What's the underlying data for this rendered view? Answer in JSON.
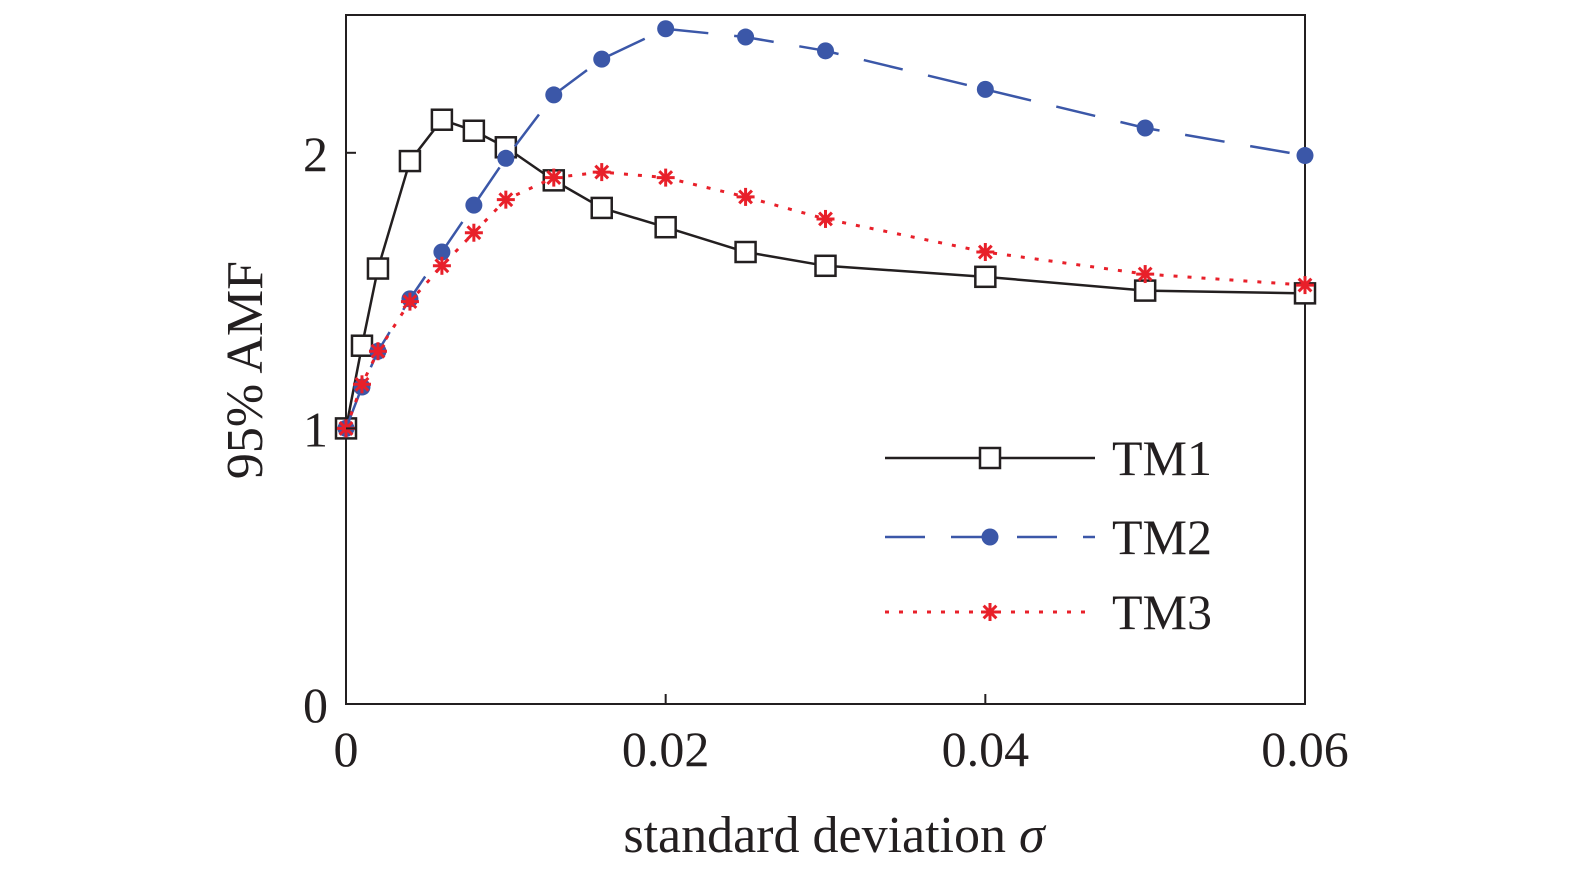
{
  "chart_data": {
    "type": "line",
    "xlabel": "standard deviation",
    "xlabel_symbol": "σ",
    "ylabel": "95% AMF",
    "xlim": [
      0,
      0.06
    ],
    "ylim": [
      0,
      2.5
    ],
    "xticks": [
      0,
      0.02,
      0.04,
      0.06
    ],
    "xtick_labels": [
      "0",
      "0.02",
      "0.04",
      "0.06"
    ],
    "yticks": [
      0,
      1,
      2
    ],
    "ytick_labels": [
      "0",
      "1",
      "2"
    ],
    "grid": false,
    "legend_position": "lower-right",
    "series": [
      {
        "name": "TM1",
        "color": "#231f20",
        "line_style": "solid",
        "marker": "open-square",
        "x": [
          0,
          0.001,
          0.002,
          0.004,
          0.006,
          0.008,
          0.01,
          0.013,
          0.016,
          0.02,
          0.025,
          0.03,
          0.04,
          0.05,
          0.06
        ],
        "y": [
          1.0,
          1.3,
          1.58,
          1.97,
          2.12,
          2.08,
          2.02,
          1.9,
          1.8,
          1.73,
          1.64,
          1.59,
          1.55,
          1.5,
          1.49
        ]
      },
      {
        "name": "TM2",
        "color": "#3b57a8",
        "line_style": "long-dash",
        "marker": "filled-circle",
        "x": [
          0,
          0.001,
          0.002,
          0.004,
          0.006,
          0.008,
          0.01,
          0.013,
          0.016,
          0.02,
          0.025,
          0.03,
          0.04,
          0.05,
          0.06
        ],
        "y": [
          1.0,
          1.15,
          1.28,
          1.47,
          1.64,
          1.81,
          1.98,
          2.21,
          2.34,
          2.45,
          2.42,
          2.37,
          2.23,
          2.09,
          1.99
        ]
      },
      {
        "name": "TM3",
        "color": "#e8202a",
        "line_style": "dotted",
        "marker": "asterisk",
        "x": [
          0,
          0.001,
          0.002,
          0.004,
          0.006,
          0.008,
          0.01,
          0.013,
          0.016,
          0.02,
          0.025,
          0.03,
          0.04,
          0.05,
          0.06
        ],
        "y": [
          1.0,
          1.16,
          1.28,
          1.46,
          1.59,
          1.71,
          1.83,
          1.91,
          1.93,
          1.91,
          1.84,
          1.76,
          1.64,
          1.56,
          1.52
        ]
      }
    ]
  }
}
